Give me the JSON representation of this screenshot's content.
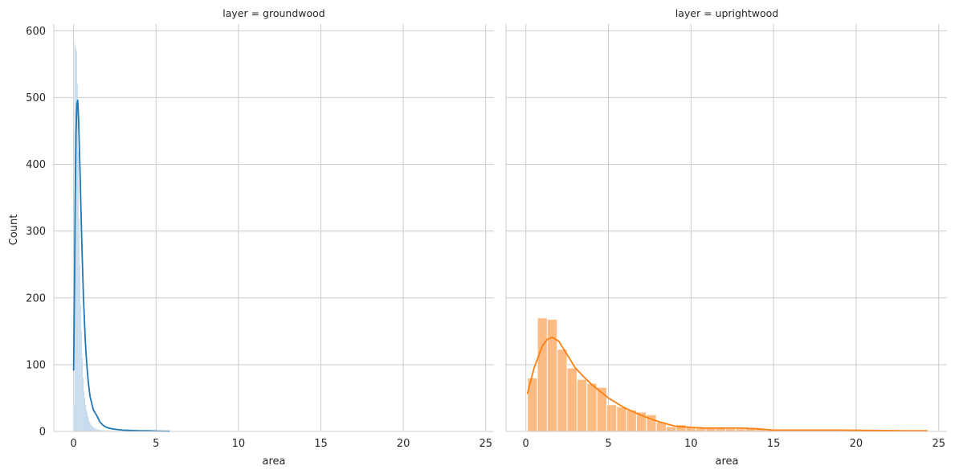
{
  "chart_data": {
    "type": "bar",
    "ylabel": "Count",
    "ylim": [
      0,
      610
    ],
    "yticks": [
      0,
      100,
      200,
      300,
      400,
      500,
      600
    ],
    "xlim": [
      -1.2,
      25.5
    ],
    "xticks": [
      0,
      5,
      10,
      15,
      20,
      25
    ],
    "grid": true,
    "panels": [
      {
        "title": "layer = groundwood",
        "xlabel": "area",
        "color": "#1f77b4",
        "bar_color": "#aecde6",
        "bins": {
          "start": 0.0,
          "width": 0.05,
          "counts": [
            40,
            580,
            575,
            570,
            520,
            420,
            320,
            250,
            190,
            150,
            110,
            80,
            60,
            50,
            40,
            32,
            28,
            22,
            18,
            14,
            12,
            10,
            8,
            7,
            6,
            5,
            5,
            4,
            4,
            3,
            3,
            3,
            2,
            2,
            2,
            2,
            2,
            1,
            1,
            1,
            1,
            1,
            1,
            1,
            1,
            1,
            1,
            1,
            1,
            1,
            1,
            1,
            1,
            1,
            1,
            1,
            1,
            1,
            1,
            1
          ]
        },
        "kde": {
          "x": [
            0.0,
            0.05,
            0.1,
            0.15,
            0.2,
            0.25,
            0.3,
            0.4,
            0.5,
            0.6,
            0.7,
            0.8,
            0.9,
            1.0,
            1.2,
            1.4,
            1.6,
            1.8,
            2.0,
            2.3,
            2.6,
            3.0,
            3.5,
            4.0,
            4.5,
            5.0,
            5.5,
            5.8
          ],
          "y": [
            92,
            200,
            350,
            450,
            490,
            496,
            470,
            380,
            280,
            200,
            140,
            100,
            72,
            52,
            32,
            24,
            14,
            9,
            6,
            4,
            3,
            2,
            1.5,
            1,
            1,
            0.5,
            0.3,
            0.2
          ]
        }
      },
      {
        "title": "layer = uprightwood",
        "xlabel": "area",
        "color": "#ff7f0e",
        "bar_color": "#fdbb84",
        "bins": {
          "start": 0.1,
          "width": 0.6,
          "counts": [
            80,
            170,
            168,
            123,
            95,
            78,
            72,
            66,
            40,
            37,
            32,
            29,
            25,
            14,
            7,
            10,
            6,
            5,
            5,
            5,
            4,
            4,
            5,
            4,
            2,
            1,
            1,
            1,
            1,
            1,
            1,
            1,
            1,
            1,
            1,
            1,
            1,
            1,
            1,
            1
          ]
        },
        "kde": {
          "x": [
            0.1,
            0.5,
            1.0,
            1.3,
            1.6,
            2.0,
            2.5,
            3.0,
            3.5,
            4.0,
            5.0,
            6.0,
            7.0,
            8.0,
            9.0,
            10.0,
            11.0,
            12.0,
            13.0,
            14.0,
            15.0,
            17.0,
            19.0,
            21.0,
            23.0,
            24.3
          ],
          "y": [
            57,
            95,
            128,
            138,
            141,
            135,
            115,
            95,
            82,
            70,
            50,
            35,
            24,
            15,
            8,
            6,
            5,
            5,
            5,
            4,
            2,
            2,
            2,
            1.5,
            1,
            1
          ]
        }
      }
    ]
  }
}
